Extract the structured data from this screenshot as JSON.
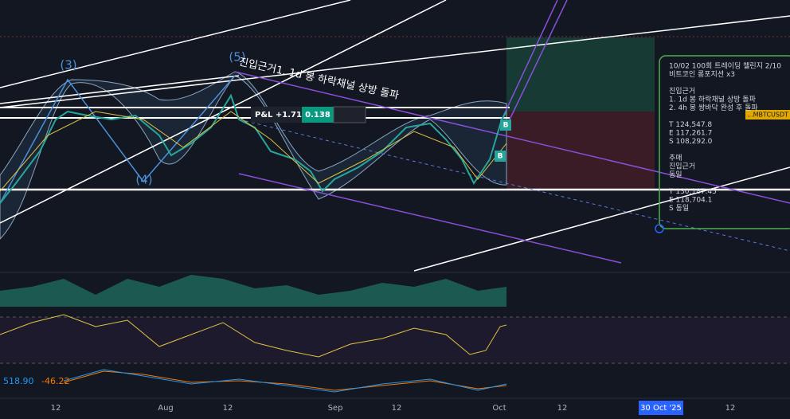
{
  "chart": {
    "wave_labels": [
      "(3)",
      "(5)",
      "(4)"
    ],
    "annotation": "진입근거1. 1d 봉 하락채널 상방 돌파",
    "position": {
      "pnl": "P&L +1.71",
      "qty": "0.138"
    },
    "symbol_tag": "...MBTCUSDT",
    "buy_markers": [
      "B",
      "B"
    ],
    "note": {
      "lines": [
        "10/02 100회 트레이딩 챌린지 2/10",
        "비트코인 롱포지션 x3",
        "",
        "진입근거",
        "1. 1d 봉 하락채널 상방 돌파",
        "2. 4h 봉 쌍바닥 완성 후 돌파",
        "",
        "T 124,547.8",
        "E 117,261.7",
        "S 108,292.0",
        "",
        "추매",
        "진입근거",
        "동일",
        "",
        "T 130,187.45",
        "E 118,704.1",
        "S 동일"
      ]
    },
    "macd": {
      "value1": "518.90",
      "value2": "-46.22"
    },
    "x_axis": [
      "12",
      "Aug",
      "12",
      "Sep",
      "12",
      "Oct",
      "12",
      "12"
    ],
    "date_badge": "30 Oct '25"
  }
}
